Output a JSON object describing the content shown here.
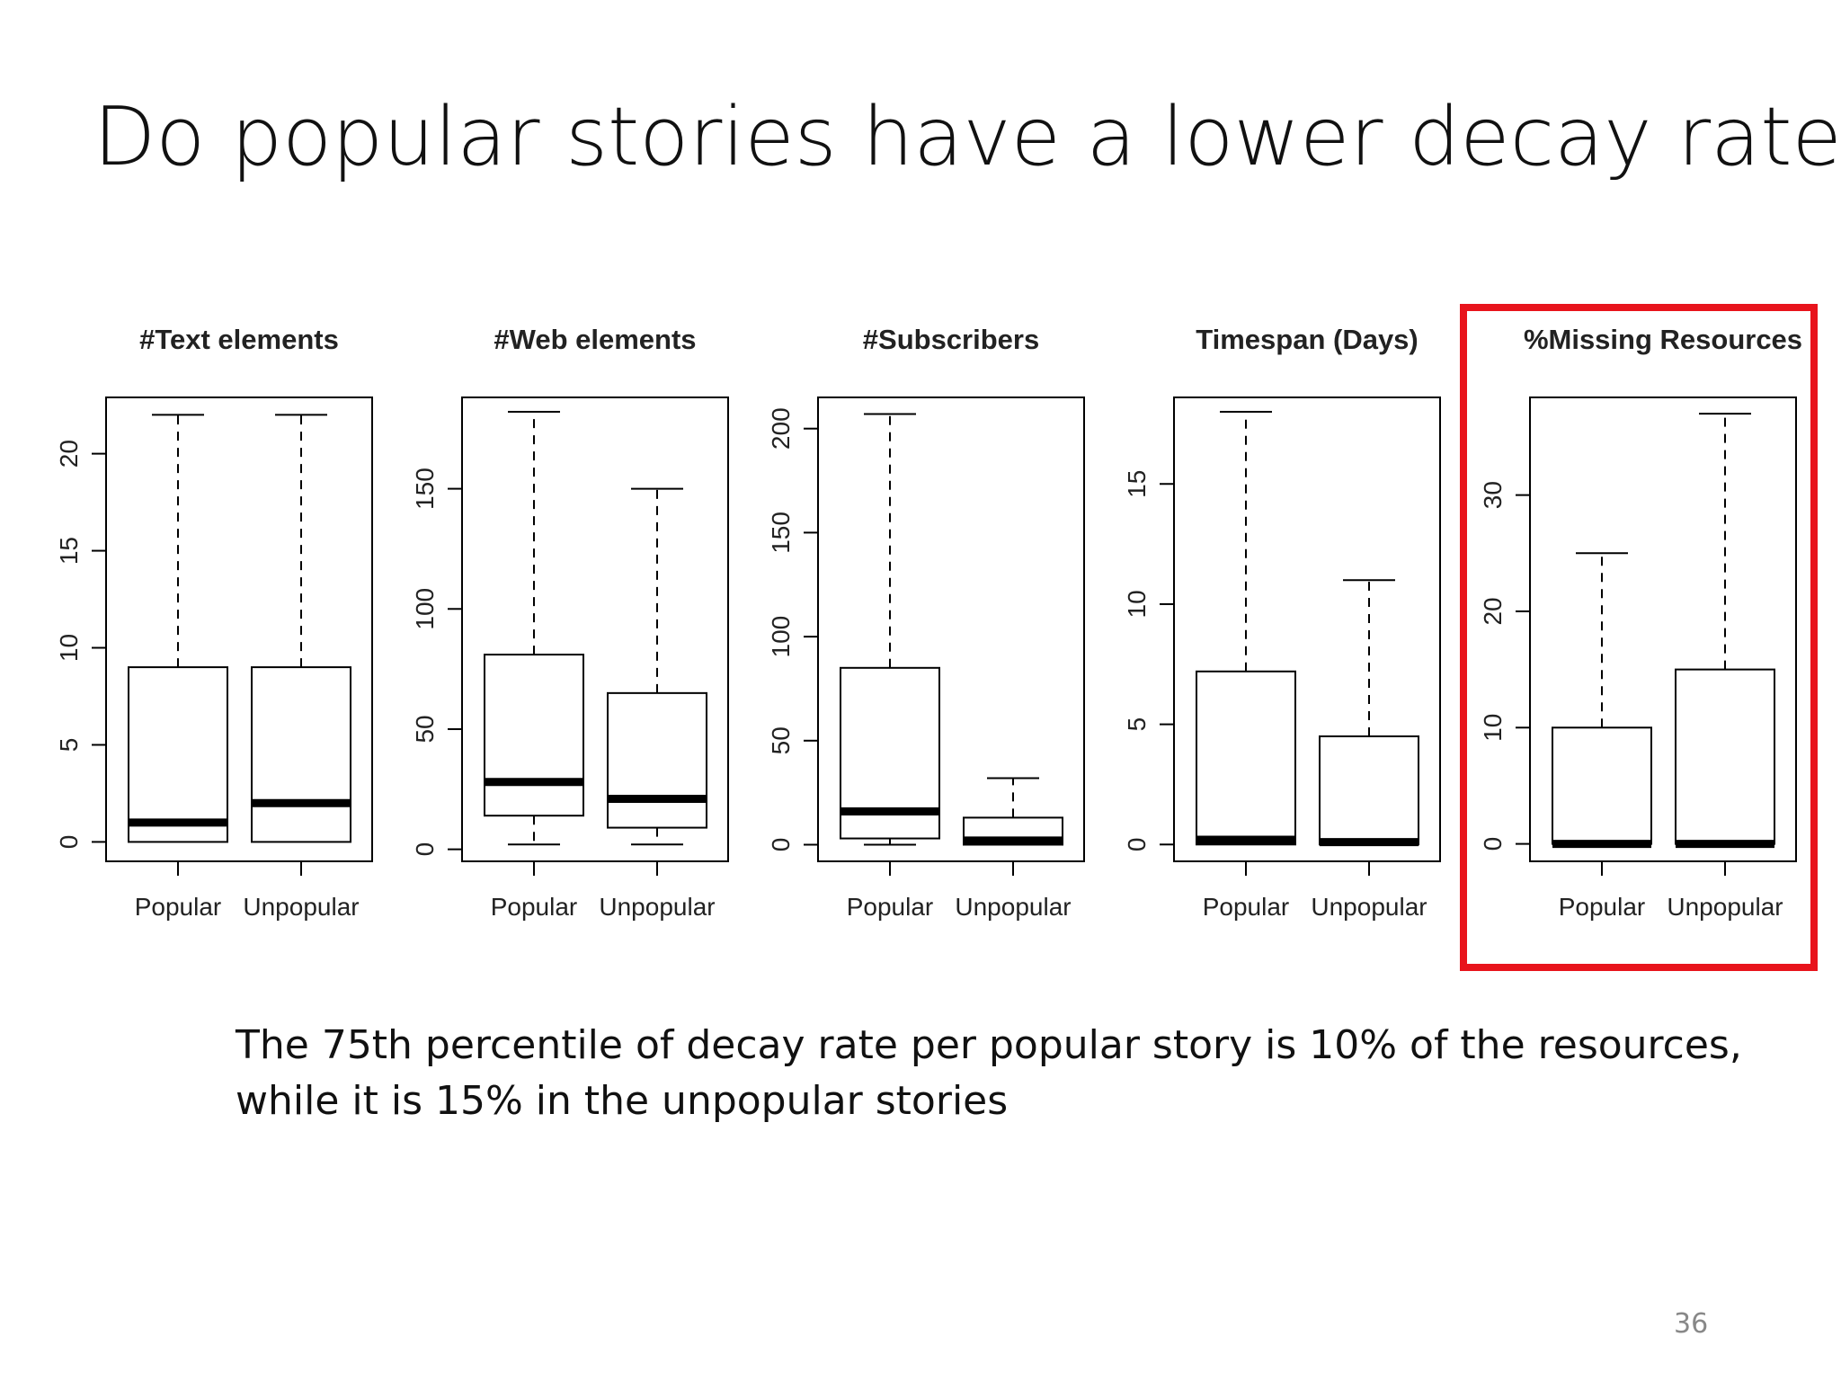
{
  "title": "Do popular stories have a lower decay rate?",
  "caption": {
    "line1": "The 75th percentile of decay rate per popular story is 10% of the resources,",
    "line2": "while it is 15% in the unpopular stories"
  },
  "page_number": "36",
  "colors": {
    "highlight": "#e8141c",
    "box_stroke": "#000000",
    "text": "#111111"
  },
  "chart_data": [
    {
      "type": "boxplot",
      "title": "#Text elements",
      "categories": [
        "Popular",
        "Unpopular"
      ],
      "ylim": [
        -1,
        22.9
      ],
      "yticks": [
        0,
        5,
        10,
        15,
        20
      ],
      "boxes": [
        {
          "name": "Popular",
          "min": 0,
          "q1": 0,
          "median": 1,
          "q3": 9,
          "max": 22
        },
        {
          "name": "Unpopular",
          "min": 0,
          "q1": 0,
          "median": 2,
          "q3": 9,
          "max": 22
        }
      ]
    },
    {
      "type": "boxplot",
      "title": "#Web elements",
      "categories": [
        "Popular",
        "Unpopular"
      ],
      "ylim": [
        -5,
        188
      ],
      "yticks": [
        0,
        50,
        100,
        150
      ],
      "boxes": [
        {
          "name": "Popular",
          "min": 2,
          "q1": 14,
          "median": 28,
          "q3": 81,
          "max": 182
        },
        {
          "name": "Unpopular",
          "min": 2,
          "q1": 9,
          "median": 21,
          "q3": 65,
          "max": 150
        }
      ]
    },
    {
      "type": "boxplot",
      "title": "#Subscribers",
      "categories": [
        "Popular",
        "Unpopular"
      ],
      "ylim": [
        -8,
        215
      ],
      "yticks": [
        0,
        50,
        100,
        150,
        200
      ],
      "boxes": [
        {
          "name": "Popular",
          "min": 0,
          "q1": 3,
          "median": 16,
          "q3": 85,
          "max": 207
        },
        {
          "name": "Unpopular",
          "min": 0,
          "q1": 0,
          "median": 2,
          "q3": 13,
          "max": 32
        }
      ]
    },
    {
      "type": "boxplot",
      "title": "Timespan (Days)",
      "categories": [
        "Popular",
        "Unpopular"
      ],
      "ylim": [
        -0.7,
        18.6
      ],
      "yticks": [
        0,
        5,
        10,
        15
      ],
      "boxes": [
        {
          "name": "Popular",
          "min": 0,
          "q1": 0,
          "median": 0.2,
          "q3": 7.2,
          "max": 18
        },
        {
          "name": "Unpopular",
          "min": 0,
          "q1": 0,
          "median": 0.1,
          "q3": 4.5,
          "max": 11
        }
      ]
    },
    {
      "type": "boxplot",
      "title": "%Missing Resources",
      "categories": [
        "Popular",
        "Unpopular"
      ],
      "ylim": [
        -1.5,
        38.4
      ],
      "yticks": [
        0,
        10,
        20,
        30
      ],
      "boxes": [
        {
          "name": "Popular",
          "min": 0,
          "q1": 0,
          "median": 0,
          "q3": 10,
          "max": 25
        },
        {
          "name": "Unpopular",
          "min": 0,
          "q1": 0,
          "median": 0,
          "q3": 15,
          "max": 37
        }
      ]
    }
  ]
}
